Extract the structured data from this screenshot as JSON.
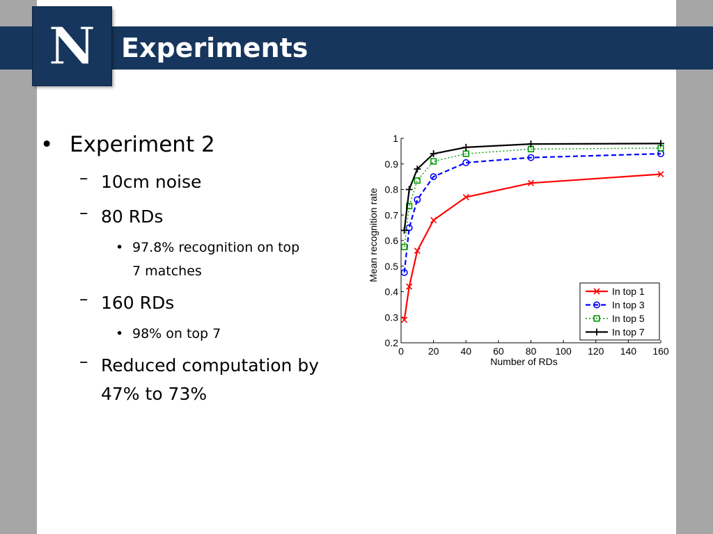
{
  "slide": {
    "title": "Experiments",
    "logo_letter": "N",
    "colors": {
      "title_bar": "#17365d",
      "background": "#a6a6a6",
      "slide": "#ffffff"
    }
  },
  "bullets": {
    "b1": {
      "marker": "•",
      "text": "Experiment 2"
    },
    "b2": {
      "marker": "–",
      "text": "10cm noise"
    },
    "b3": {
      "marker": "–",
      "text": "80 RDs"
    },
    "b4": {
      "marker": "•",
      "line1": "97.8% recognition on top",
      "line2": "7 matches"
    },
    "b5": {
      "marker": "–",
      "text": "160 RDs"
    },
    "b6": {
      "marker": "•",
      "text": "98% on top 7"
    },
    "b7": {
      "marker": "–",
      "line1": "Reduced computation by",
      "line2": "47% to 73%"
    }
  },
  "chart_data": {
    "type": "line",
    "xlabel": "Number of RDs",
    "ylabel": "Mean recognition rate",
    "xlim": [
      0,
      160
    ],
    "ylim": [
      0.2,
      1
    ],
    "xticks": [
      0,
      20,
      40,
      60,
      80,
      100,
      120,
      140,
      160
    ],
    "yticks": [
      0.2,
      0.3,
      0.4,
      0.5,
      0.6,
      0.7,
      0.8,
      0.9,
      1
    ],
    "ytick_labels": [
      "0.2",
      "0.3",
      "0.4",
      "0.5",
      "0.6",
      "0.7",
      "0.8",
      "0.9",
      "1"
    ],
    "grid": false,
    "legend_position": "bottom-right",
    "x": [
      2,
      5,
      10,
      20,
      40,
      80,
      160
    ],
    "series": [
      {
        "name": "In top 1",
        "color": "#ff0000",
        "marker": "x",
        "linestyle": "solid",
        "values": [
          0.29,
          0.42,
          0.56,
          0.68,
          0.77,
          0.825,
          0.86
        ]
      },
      {
        "name": "In top 3",
        "color": "#0000ff",
        "marker": "circle",
        "linestyle": "dashed",
        "values": [
          0.475,
          0.65,
          0.76,
          0.85,
          0.905,
          0.925,
          0.94
        ]
      },
      {
        "name": "In top 5",
        "color": "#009900",
        "marker": "square",
        "linestyle": "dotted",
        "values": [
          0.575,
          0.735,
          0.835,
          0.91,
          0.94,
          0.958,
          0.962
        ]
      },
      {
        "name": "In top 7",
        "color": "#000000",
        "marker": "plus",
        "linestyle": "solid",
        "values": [
          0.64,
          0.8,
          0.88,
          0.94,
          0.965,
          0.978,
          0.98
        ]
      }
    ]
  }
}
